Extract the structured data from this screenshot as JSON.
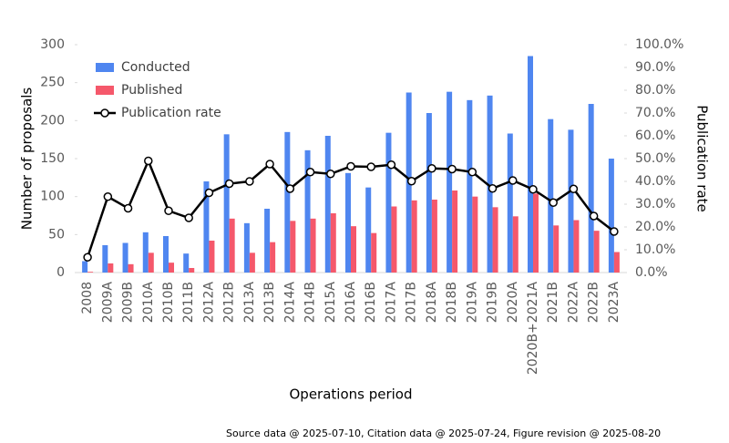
{
  "chart_data": {
    "type": "bar-line",
    "x_label": "Operations period",
    "y_label": "Number of proposals",
    "y2_label": "Publication rate",
    "footnote": "Source data @  2025-07-10, Citation data @ 2025-07-24, Figure revision @ 2025-08-20",
    "categories": [
      "2008",
      "2009A",
      "2009B",
      "2010A",
      "2010B",
      "2011B",
      "2012A",
      "2012B",
      "2013A",
      "2013B",
      "2014A",
      "2014B",
      "2015A",
      "2016A",
      "2016B",
      "2017A",
      "2017B",
      "2018A",
      "2018B",
      "2019A",
      "2019B",
      "2020A",
      "2020B+2021A",
      "2021B",
      "2022A",
      "2022B",
      "2023A"
    ],
    "series": [
      {
        "name": "Conducted",
        "color": "#4f86f0",
        "type": "bar",
        "values": [
          15,
          36,
          39,
          53,
          48,
          25,
          120,
          182,
          65,
          84,
          185,
          161,
          180,
          131,
          112,
          184,
          237,
          210,
          238,
          227,
          233,
          183,
          285,
          202,
          188,
          222,
          150
        ]
      },
      {
        "name": "Published",
        "color": "#f5586b",
        "type": "bar",
        "values": [
          1,
          12,
          11,
          26,
          13,
          6,
          42,
          71,
          26,
          40,
          68,
          71,
          78,
          61,
          52,
          87,
          95,
          96,
          108,
          100,
          86,
          74,
          104,
          62,
          69,
          55,
          27
        ]
      },
      {
        "name": "Publication rate",
        "color": "#000000",
        "type": "line",
        "axis": "y2",
        "values": [
          6.7,
          33.3,
          28.2,
          49,
          27.1,
          24,
          35,
          39,
          40,
          47.6,
          36.8,
          44.1,
          43.3,
          46.6,
          46.4,
          47.3,
          40.1,
          45.7,
          45.4,
          44.1,
          36.9,
          40.4,
          36.5,
          30.7,
          36.7,
          24.8,
          18
        ]
      }
    ],
    "ylim": [
      0,
      300
    ],
    "yticks": [
      0,
      50,
      100,
      150,
      200,
      250,
      300
    ],
    "y2lim": [
      0,
      100
    ],
    "y2ticks": [
      {
        "value": 0,
        "label": "0.0%"
      },
      {
        "value": 10,
        "label": "10.0%"
      },
      {
        "value": 20,
        "label": "20.0%"
      },
      {
        "value": 30,
        "label": "30.0%"
      },
      {
        "value": 40,
        "label": "40.0%"
      },
      {
        "value": 50,
        "label": "50.0%"
      },
      {
        "value": 60,
        "label": "60.0%"
      },
      {
        "value": 70,
        "label": "70.0%"
      },
      {
        "value": 80,
        "label": "80.0%"
      },
      {
        "value": 90,
        "label": "90.0%"
      },
      {
        "value": 100,
        "label": "100.0%"
      }
    ],
    "grid": false,
    "legend_position": "upper left"
  }
}
